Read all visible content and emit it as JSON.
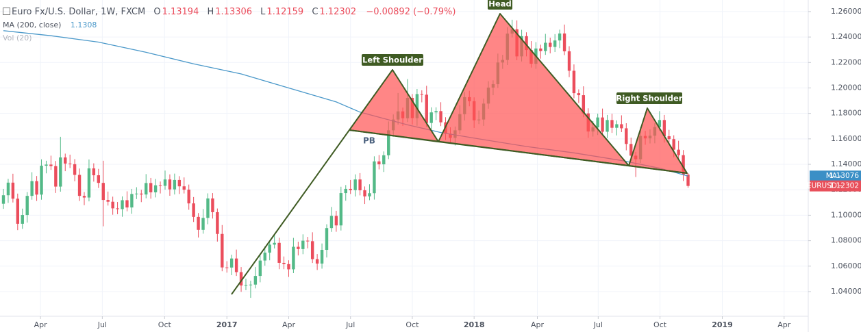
{
  "chart_data": {
    "type": "candlestick",
    "legend": {
      "symbol": "Euro Fx/U.S. Dollar, 1W, FXCM",
      "open_label": "O",
      "open": 1.13194,
      "high_label": "H",
      "high": 1.13306,
      "low_label": "L",
      "low": 1.12159,
      "close_label": "C",
      "close": 1.12302,
      "change": "−0.00892 (−0.79%)",
      "ma": "MA (200, close)",
      "ma_value": 1.1308,
      "vol": "Vol (20)"
    },
    "up_color": "#53b987",
    "down_color": "#eb4d5c",
    "ohlc": [
      [
        1.109,
        1.1207,
        1.105,
        1.1157
      ],
      [
        1.1157,
        1.1286,
        1.1097,
        1.1256
      ],
      [
        1.1256,
        1.1326,
        1.11,
        1.113
      ],
      [
        1.113,
        1.117,
        1.0883,
        1.0933
      ],
      [
        1.0933,
        1.1052,
        1.0893,
        1.1002
      ],
      [
        1.1002,
        1.1182,
        1.0942,
        1.1152
      ],
      [
        1.1152,
        1.1338,
        1.1122,
        1.1268
      ],
      [
        1.1268,
        1.1308,
        1.1112,
        1.1162
      ],
      [
        1.1162,
        1.1439,
        1.1122,
        1.1389
      ],
      [
        1.1389,
        1.1428,
        1.1329,
        1.1398
      ],
      [
        1.1398,
        1.1468,
        1.1356,
        1.1386
      ],
      [
        1.1386,
        1.1426,
        1.1175,
        1.1225
      ],
      [
        1.1225,
        1.1616,
        1.1185,
        1.1454
      ],
      [
        1.1454,
        1.1484,
        1.1346,
        1.1406
      ],
      [
        1.1406,
        1.1476,
        1.1371,
        1.1401
      ],
      [
        1.1401,
        1.1441,
        1.1267,
        1.1317
      ],
      [
        1.1317,
        1.1367,
        1.1112,
        1.1152
      ],
      [
        1.1152,
        1.1182,
        1.1079,
        1.1139
      ],
      [
        1.1139,
        1.1438,
        1.1109,
        1.1368
      ],
      [
        1.1368,
        1.1408,
        1.1264,
        1.1314
      ],
      [
        1.1314,
        1.1364,
        1.1214,
        1.1254
      ],
      [
        1.1254,
        1.1428,
        1.0913,
        1.112
      ],
      [
        1.112,
        1.1186,
        1.1076,
        1.1106
      ],
      [
        1.1106,
        1.1146,
        1.1004,
        1.1054
      ],
      [
        1.1054,
        1.1104,
        1.1008,
        1.1048
      ],
      [
        1.1048,
        1.1148,
        1.0988,
        1.1118
      ],
      [
        1.1118,
        1.1188,
        1.1031,
        1.1061
      ],
      [
        1.1061,
        1.1207,
        1.1011,
        1.1167
      ],
      [
        1.1167,
        1.122,
        1.1127,
        1.117
      ],
      [
        1.117,
        1.12,
        1.1103,
        1.1163
      ],
      [
        1.1163,
        1.1323,
        1.1133,
        1.1253
      ],
      [
        1.1253,
        1.1293,
        1.113,
        1.118
      ],
      [
        1.118,
        1.1285,
        1.114,
        1.1235
      ],
      [
        1.1235,
        1.1265,
        1.1171,
        1.1231
      ],
      [
        1.1231,
        1.1351,
        1.1201,
        1.1281
      ],
      [
        1.1281,
        1.1321,
        1.1153,
        1.1203
      ],
      [
        1.1203,
        1.1327,
        1.1163,
        1.1277
      ],
      [
        1.1277,
        1.1307,
        1.1167,
        1.1227
      ],
      [
        1.1227,
        1.1297,
        1.1171,
        1.1201
      ],
      [
        1.1201,
        1.1241,
        1.1043,
        1.1093
      ],
      [
        1.1093,
        1.1143,
        1.0947,
        1.0987
      ],
      [
        1.0987,
        1.1017,
        1.0825,
        1.0885
      ],
      [
        1.0885,
        1.1049,
        1.0855,
        1.0979
      ],
      [
        1.0979,
        1.1172,
        1.0929,
        1.1132
      ],
      [
        1.1132,
        1.1174,
        1.0974,
        1.1024
      ],
      [
        1.1024,
        1.1053,
        1.0793,
        1.0853
      ],
      [
        1.0853,
        1.0923,
        1.056,
        1.059
      ],
      [
        1.059,
        1.0639,
        1.0549,
        1.0589
      ],
      [
        1.0589,
        1.069,
        1.0529,
        1.066
      ],
      [
        1.066,
        1.073,
        1.0523,
        1.0553
      ],
      [
        1.0553,
        1.0593,
        1.0398,
        1.0448
      ],
      [
        1.0448,
        1.0501,
        1.0411,
        1.0451
      ],
      [
        1.0451,
        1.0485,
        1.0351,
        1.0455
      ],
      [
        1.0455,
        1.0593,
        1.0425,
        1.0523
      ],
      [
        1.0523,
        1.0684,
        1.0473,
        1.0644
      ],
      [
        1.0644,
        1.0756,
        1.0604,
        1.0706
      ],
      [
        1.0706,
        1.0799,
        1.0646,
        1.0769
      ],
      [
        1.0769,
        1.0853,
        1.0739,
        1.0783
      ],
      [
        1.0783,
        1.0823,
        1.0576,
        1.0626
      ],
      [
        1.0626,
        1.0676,
        1.0576,
        1.0616
      ],
      [
        1.0616,
        1.0646,
        1.0515,
        1.0575
      ],
      [
        1.0575,
        1.0822,
        1.0545,
        1.0752
      ],
      [
        1.0752,
        1.0792,
        1.0684,
        1.0734
      ],
      [
        1.0734,
        1.085,
        1.0694,
        1.08
      ],
      [
        1.08,
        1.083,
        1.074,
        1.0796
      ],
      [
        1.0796,
        1.0866,
        1.0625,
        1.0655
      ],
      [
        1.0655,
        1.0695,
        1.057,
        1.062
      ],
      [
        1.062,
        1.0778,
        1.058,
        1.0728
      ],
      [
        1.0728,
        1.0929,
        1.0668,
        1.0899
      ],
      [
        1.0899,
        1.1065,
        1.0869,
        1.0995
      ],
      [
        1.0995,
        1.1035,
        1.087,
        1.092
      ],
      [
        1.092,
        1.1224,
        1.088,
        1.1174
      ],
      [
        1.1174,
        1.1237,
        1.1114,
        1.1207
      ],
      [
        1.1207,
        1.1277,
        1.1167,
        1.1197
      ],
      [
        1.1197,
        1.1321,
        1.1147,
        1.1281
      ],
      [
        1.1281,
        1.1331,
        1.1156,
        1.1196
      ],
      [
        1.1196,
        1.1226,
        1.1088,
        1.1148
      ],
      [
        1.1148,
        1.1243,
        1.1118,
        1.1173
      ],
      [
        1.1173,
        1.1463,
        1.1123,
        1.1423
      ],
      [
        1.1423,
        1.1473,
        1.136,
        1.14
      ],
      [
        1.14,
        1.1501,
        1.134,
        1.1471
      ],
      [
        1.1471,
        1.1737,
        1.1441,
        1.1667
      ],
      [
        1.1667,
        1.1792,
        1.1617,
        1.1752
      ],
      [
        1.1752,
        1.196,
        1.1712,
        1.1816
      ],
      [
        1.1816,
        1.1846,
        1.1702,
        1.1762
      ],
      [
        1.1762,
        1.207,
        1.1732,
        1.1922
      ],
      [
        1.1922,
        1.1952,
        1.1713,
        1.1763
      ],
      [
        1.1763,
        1.1992,
        1.1703,
        1.1952
      ],
      [
        1.1952,
        1.1982,
        1.1887,
        1.1947
      ],
      [
        1.1947,
        1.2017,
        1.1695,
        1.1725
      ],
      [
        1.1725,
        1.1848,
        1.1675,
        1.1808
      ],
      [
        1.1808,
        1.1848,
        1.1748,
        1.1818
      ],
      [
        1.1818,
        1.1888,
        1.17,
        1.173
      ],
      [
        1.173,
        1.177,
        1.1591,
        1.1641
      ],
      [
        1.1641,
        1.1691,
        1.1568,
        1.1608
      ],
      [
        1.1608,
        1.1697,
        1.1548,
        1.1667
      ],
      [
        1.1667,
        1.1864,
        1.1637,
        1.1794
      ],
      [
        1.1794,
        1.1968,
        1.1744,
        1.1928
      ],
      [
        1.1928,
        1.1978,
        1.1856,
        1.1896
      ],
      [
        1.1896,
        1.1926,
        1.1686,
        1.1746
      ],
      [
        1.1746,
        1.1822,
        1.1716,
        1.1752
      ],
      [
        1.1752,
        1.1917,
        1.1702,
        1.1877
      ],
      [
        1.1877,
        1.2053,
        1.1837,
        1.2003
      ],
      [
        1.2003,
        1.206,
        1.1943,
        1.203
      ],
      [
        1.203,
        1.227,
        1.2,
        1.22
      ],
      [
        1.22,
        1.226,
        1.215,
        1.222
      ],
      [
        1.222,
        1.2477,
        1.218,
        1.2427
      ],
      [
        1.2427,
        1.2536,
        1.2397,
        1.2461
      ],
      [
        1.2461,
        1.2531,
        1.2218,
        1.2248
      ],
      [
        1.2248,
        1.2457,
        1.2208,
        1.2407
      ],
      [
        1.2407,
        1.2437,
        1.2248,
        1.2298
      ],
      [
        1.2298,
        1.2368,
        1.216,
        1.219
      ],
      [
        1.219,
        1.236,
        1.215,
        1.231
      ],
      [
        1.231,
        1.234,
        1.223,
        1.229
      ],
      [
        1.229,
        1.2425,
        1.226,
        1.2355
      ],
      [
        1.2355,
        1.2395,
        1.2272,
        1.2322
      ],
      [
        1.2322,
        1.2423,
        1.2282,
        1.2373
      ],
      [
        1.2373,
        1.2458,
        1.2313,
        1.2428
      ],
      [
        1.2428,
        1.2498,
        1.2258,
        1.2288
      ],
      [
        1.2288,
        1.2328,
        1.2085,
        1.2135
      ],
      [
        1.2135,
        1.2185,
        1.1919,
        1.1959
      ],
      [
        1.1959,
        1.1989,
        1.1883,
        1.1943
      ],
      [
        1.1943,
        1.2013,
        1.177,
        1.18
      ],
      [
        1.18,
        1.184,
        1.1608,
        1.1658
      ],
      [
        1.1658,
        1.174,
        1.1618,
        1.169
      ],
      [
        1.169,
        1.1798,
        1.163,
        1.1768
      ],
      [
        1.1768,
        1.1838,
        1.1626,
        1.1656
      ],
      [
        1.1656,
        1.1788,
        1.1606,
        1.1748
      ],
      [
        1.1748,
        1.1798,
        1.1647,
        1.1687
      ],
      [
        1.1687,
        1.1745,
        1.1627,
        1.1715
      ],
      [
        1.1715,
        1.1785,
        1.1653,
        1.1683
      ],
      [
        1.1683,
        1.1723,
        1.151,
        1.156
      ],
      [
        1.156,
        1.161,
        1.1428,
        1.1468
      ],
      [
        1.1468,
        1.1498,
        1.13,
        1.144
      ],
      [
        1.144,
        1.1693,
        1.141,
        1.1623
      ],
      [
        1.1623,
        1.1663,
        1.1554,
        1.1604
      ],
      [
        1.1604,
        1.1675,
        1.1564,
        1.1625
      ],
      [
        1.1625,
        1.1723,
        1.1565,
        1.1693
      ],
      [
        1.1693,
        1.1818,
        1.1663,
        1.1748
      ],
      [
        1.1748,
        1.1788,
        1.1571,
        1.1621
      ],
      [
        1.1621,
        1.1671,
        1.1558,
        1.1598
      ],
      [
        1.1598,
        1.1628,
        1.1455,
        1.1515
      ],
      [
        1.1515,
        1.1585,
        1.1442,
        1.1472
      ],
      [
        1.1472,
        1.1512,
        1.1269,
        1.1319
      ],
      [
        1.13194,
        1.13306,
        1.12159,
        1.12302
      ]
    ],
    "ma": {
      "color": "#4a98c9",
      "x": [
        0,
        10,
        20,
        30,
        40,
        50,
        60,
        70,
        75,
        78,
        85,
        92,
        100,
        110,
        120,
        130,
        138,
        144
      ],
      "values": [
        1.245,
        1.241,
        1.236,
        1.228,
        1.219,
        1.211,
        1.2,
        1.189,
        1.181,
        1.178,
        1.171,
        1.165,
        1.16,
        1.154,
        1.149,
        1.143,
        1.137,
        1.13076
      ]
    },
    "price_tags": [
      {
        "name": "MA",
        "value": 1.13076,
        "color": "#3b8fc6"
      },
      {
        "name": "EURUSD",
        "value": 1.12302,
        "color": "#e8505b"
      }
    ],
    "annotations": [
      "Left Shoulder",
      "Head",
      "Right Shoulder",
      "PB"
    ],
    "xlim": [
      -0.72,
      169.28
    ],
    "xticks": [
      {
        "value": 7.8,
        "label": "Apr"
      },
      {
        "value": 20.8,
        "label": "Jul"
      },
      {
        "value": 33.9,
        "label": "Oct"
      },
      {
        "value": 47.0,
        "label": "2017"
      },
      {
        "value": 60.0,
        "label": "Apr"
      },
      {
        "value": 73.0,
        "label": "Jul"
      },
      {
        "value": 86.0,
        "label": "Oct"
      },
      {
        "value": 99.0,
        "label": "2018"
      },
      {
        "value": 112.3,
        "label": "Apr"
      },
      {
        "value": 125.1,
        "label": "Jul"
      },
      {
        "value": 138.1,
        "label": "Oct"
      },
      {
        "value": 151.2,
        "label": "2019"
      },
      {
        "value": 164.2,
        "label": "Apr"
      }
    ],
    "ylim": [
      1.0217,
      1.2691
    ],
    "yticks": [
      {
        "value": 1.04,
        "label": "1.04000"
      },
      {
        "value": 1.06,
        "label": "1.06000"
      },
      {
        "value": 1.08,
        "label": "1.08000"
      },
      {
        "value": 1.1,
        "label": "1.10000"
      },
      {
        "value": 1.12,
        "label": "1.12000"
      },
      {
        "value": 1.14,
        "label": "1.14000"
      },
      {
        "value": 1.16,
        "label": "1.16000"
      },
      {
        "value": 1.18,
        "label": "1.18000"
      },
      {
        "value": 1.2,
        "label": "1.20000"
      },
      {
        "value": 1.22,
        "label": "1.22000"
      },
      {
        "value": 1.24,
        "label": "1.24000"
      },
      {
        "value": 1.26,
        "label": "1.26000"
      }
    ],
    "grid": true
  }
}
